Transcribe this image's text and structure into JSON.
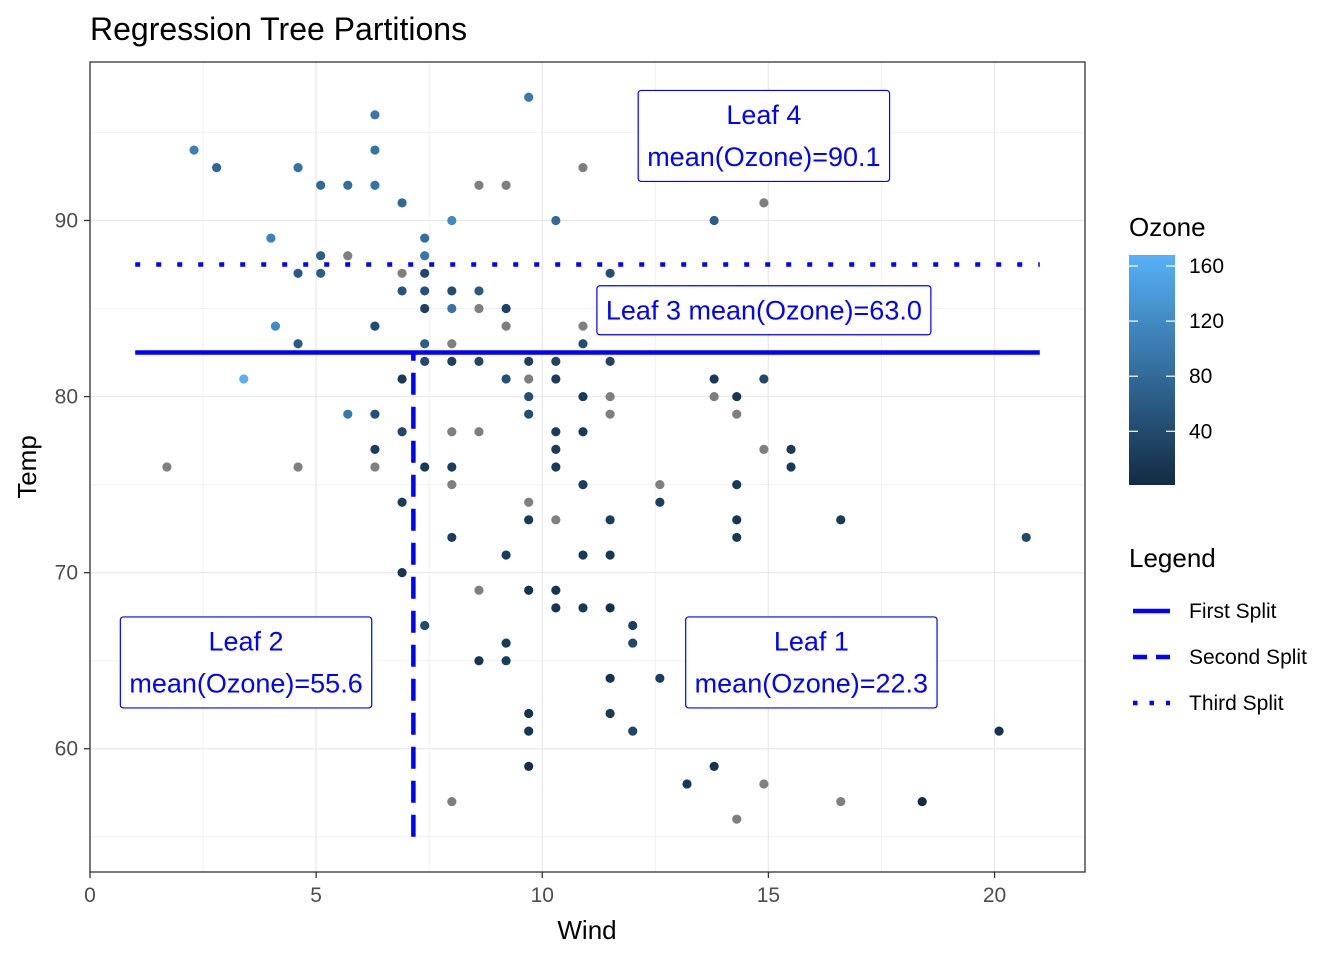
{
  "chart_data": {
    "type": "scatter",
    "title": "Regression Tree Partitions",
    "xlabel": "Wind",
    "ylabel": "Temp",
    "xlim": [
      0,
      22
    ],
    "ylim": [
      53,
      99
    ],
    "xticks": [
      0,
      5,
      10,
      15,
      20
    ],
    "yticks": [
      60,
      70,
      80,
      90
    ],
    "grid": true,
    "color_legend": {
      "title": "Ozone",
      "range": [
        1,
        168
      ],
      "ticks": [
        40,
        80,
        120,
        160
      ],
      "low_color": "#132b43",
      "high_color": "#56b1f7",
      "na_color": "#7f7f7f"
    },
    "line_legend": {
      "title": "Legend",
      "entries": [
        "First Split",
        "Second Split",
        "Third Split"
      ]
    },
    "splits": [
      {
        "name": "First Split",
        "style": "solid",
        "orientation": "horizontal",
        "y": 82.5,
        "x_range": [
          1,
          21
        ],
        "color": "#0000ff"
      },
      {
        "name": "Second Split",
        "style": "dashed",
        "orientation": "vertical",
        "x": 7.15,
        "y_range": [
          55,
          82.5
        ],
        "color": "#0000ff"
      },
      {
        "name": "Third Split",
        "style": "dotted",
        "orientation": "horizontal",
        "y": 87.5,
        "x_range": [
          1,
          21
        ],
        "color": "#0000ff"
      }
    ],
    "annotations": [
      {
        "lines": [
          "Leaf 4",
          "mean(Ozone)=90.1"
        ],
        "x": 14.9,
        "y": 94.8
      },
      {
        "lines": [
          "Leaf 3 mean(Ozone)=63.0"
        ],
        "x": 14.9,
        "y": 84.9
      },
      {
        "lines": [
          "Leaf 2",
          "mean(Ozone)=55.6"
        ],
        "x": 3.45,
        "y": 64.9
      },
      {
        "lines": [
          "Leaf 1",
          "mean(Ozone)=22.3"
        ],
        "x": 15.95,
        "y": 64.9
      }
    ],
    "points": [
      {
        "x": 9.7,
        "y": 97,
        "ozone": 97
      },
      {
        "x": 6.3,
        "y": 96,
        "ozone": 96
      },
      {
        "x": 2.3,
        "y": 94,
        "ozone": 108
      },
      {
        "x": 6.3,
        "y": 94,
        "ozone": 89
      },
      {
        "x": 2.8,
        "y": 93,
        "ozone": 73
      },
      {
        "x": 4.6,
        "y": 93,
        "ozone": 91
      },
      {
        "x": 10.9,
        "y": 93,
        "ozone": null
      },
      {
        "x": 5.1,
        "y": 92,
        "ozone": 78
      },
      {
        "x": 5.7,
        "y": 92,
        "ozone": 85
      },
      {
        "x": 6.3,
        "y": 92,
        "ozone": 90
      },
      {
        "x": 8.6,
        "y": 92,
        "ozone": null
      },
      {
        "x": 9.2,
        "y": 92,
        "ozone": null
      },
      {
        "x": 6.9,
        "y": 91,
        "ozone": 76
      },
      {
        "x": 14.9,
        "y": 91,
        "ozone": null
      },
      {
        "x": 8.0,
        "y": 90,
        "ozone": 118
      },
      {
        "x": 10.3,
        "y": 90,
        "ozone": 80
      },
      {
        "x": 13.8,
        "y": 90,
        "ozone": 66
      },
      {
        "x": 4.0,
        "y": 89,
        "ozone": 110
      },
      {
        "x": 7.4,
        "y": 89,
        "ozone": 85
      },
      {
        "x": 5.1,
        "y": 88,
        "ozone": 64
      },
      {
        "x": 5.7,
        "y": 88,
        "ozone": null
      },
      {
        "x": 7.4,
        "y": 88,
        "ozone": 96
      },
      {
        "x": 4.6,
        "y": 87,
        "ozone": 59
      },
      {
        "x": 5.1,
        "y": 87,
        "ozone": 63
      },
      {
        "x": 6.9,
        "y": 87,
        "ozone": null
      },
      {
        "x": 7.4,
        "y": 87,
        "ozone": 39
      },
      {
        "x": 11.5,
        "y": 87,
        "ozone": 44
      },
      {
        "x": 6.9,
        "y": 86,
        "ozone": 52
      },
      {
        "x": 7.4,
        "y": 86,
        "ozone": 50
      },
      {
        "x": 8.0,
        "y": 86,
        "ozone": 42
      },
      {
        "x": 8.6,
        "y": 86,
        "ozone": 59
      },
      {
        "x": 11.5,
        "y": 86,
        "ozone": 39
      },
      {
        "x": 12.0,
        "y": 86,
        "ozone": 47
      },
      {
        "x": 7.4,
        "y": 85,
        "ozone": 28
      },
      {
        "x": 8.0,
        "y": 85,
        "ozone": 91
      },
      {
        "x": 8.6,
        "y": 85,
        "ozone": null
      },
      {
        "x": 9.2,
        "y": 85,
        "ozone": 30
      },
      {
        "x": 4.1,
        "y": 84,
        "ozone": 122
      },
      {
        "x": 6.3,
        "y": 84,
        "ozone": 44
      },
      {
        "x": 9.2,
        "y": 84,
        "ozone": null
      },
      {
        "x": 10.9,
        "y": 84,
        "ozone": null
      },
      {
        "x": 11.5,
        "y": 84,
        "ozone": 35
      },
      {
        "x": 4.6,
        "y": 83,
        "ozone": 61
      },
      {
        "x": 7.4,
        "y": 83,
        "ozone": 64
      },
      {
        "x": 8.0,
        "y": 83,
        "ozone": null
      },
      {
        "x": 10.9,
        "y": 83,
        "ozone": 45
      },
      {
        "x": 7.4,
        "y": 82,
        "ozone": 40
      },
      {
        "x": 8.0,
        "y": 82,
        "ozone": 27
      },
      {
        "x": 8.6,
        "y": 82,
        "ozone": 35
      },
      {
        "x": 9.7,
        "y": 82,
        "ozone": 29
      },
      {
        "x": 10.3,
        "y": 82,
        "ozone": 32
      },
      {
        "x": 11.5,
        "y": 82,
        "ozone": 31
      },
      {
        "x": 6.9,
        "y": 81,
        "ozone": 20
      },
      {
        "x": 9.2,
        "y": 81,
        "ozone": 46
      },
      {
        "x": 9.7,
        "y": 81,
        "ozone": null
      },
      {
        "x": 10.3,
        "y": 81,
        "ozone": 21
      },
      {
        "x": 13.8,
        "y": 81,
        "ozone": 18
      },
      {
        "x": 14.9,
        "y": 81,
        "ozone": 36
      },
      {
        "x": 3.4,
        "y": 81,
        "ozone": 168
      },
      {
        "x": 9.7,
        "y": 80,
        "ozone": 44
      },
      {
        "x": 10.9,
        "y": 80,
        "ozone": 21
      },
      {
        "x": 11.5,
        "y": 80,
        "ozone": null
      },
      {
        "x": 13.8,
        "y": 80,
        "ozone": null
      },
      {
        "x": 14.3,
        "y": 80,
        "ozone": 16
      },
      {
        "x": 5.7,
        "y": 79,
        "ozone": 97
      },
      {
        "x": 6.3,
        "y": 79,
        "ozone": 48
      },
      {
        "x": 9.7,
        "y": 79,
        "ozone": 44
      },
      {
        "x": 11.5,
        "y": 79,
        "ozone": null
      },
      {
        "x": 14.3,
        "y": 79,
        "ozone": null
      },
      {
        "x": 6.9,
        "y": 78,
        "ozone": 37
      },
      {
        "x": 8.0,
        "y": 78,
        "ozone": null
      },
      {
        "x": 8.6,
        "y": 78,
        "ozone": null
      },
      {
        "x": 10.3,
        "y": 78,
        "ozone": 21
      },
      {
        "x": 10.9,
        "y": 78,
        "ozone": 20
      },
      {
        "x": 6.3,
        "y": 77,
        "ozone": 23
      },
      {
        "x": 10.3,
        "y": 77,
        "ozone": 21
      },
      {
        "x": 14.9,
        "y": 77,
        "ozone": null
      },
      {
        "x": 15.5,
        "y": 77,
        "ozone": 20
      },
      {
        "x": 1.7,
        "y": 76,
        "ozone": null
      },
      {
        "x": 4.6,
        "y": 76,
        "ozone": null
      },
      {
        "x": 6.3,
        "y": 76,
        "ozone": null
      },
      {
        "x": 7.4,
        "y": 76,
        "ozone": 18
      },
      {
        "x": 8.0,
        "y": 76,
        "ozone": 23
      },
      {
        "x": 10.3,
        "y": 76,
        "ozone": 20
      },
      {
        "x": 15.5,
        "y": 76,
        "ozone": 19
      },
      {
        "x": 8.0,
        "y": 75,
        "ozone": null
      },
      {
        "x": 10.9,
        "y": 75,
        "ozone": 24
      },
      {
        "x": 12.6,
        "y": 75,
        "ozone": null
      },
      {
        "x": 14.3,
        "y": 75,
        "ozone": 18
      },
      {
        "x": 6.9,
        "y": 74,
        "ozone": 21
      },
      {
        "x": 9.7,
        "y": 74,
        "ozone": null
      },
      {
        "x": 12.6,
        "y": 74,
        "ozone": 24
      },
      {
        "x": 9.7,
        "y": 73,
        "ozone": 18
      },
      {
        "x": 10.3,
        "y": 73,
        "ozone": null
      },
      {
        "x": 11.5,
        "y": 73,
        "ozone": 22
      },
      {
        "x": 14.3,
        "y": 73,
        "ozone": 13
      },
      {
        "x": 16.6,
        "y": 73,
        "ozone": 20
      },
      {
        "x": 8.0,
        "y": 72,
        "ozone": 23
      },
      {
        "x": 14.3,
        "y": 72,
        "ozone": 18
      },
      {
        "x": 20.7,
        "y": 72,
        "ozone": 37
      },
      {
        "x": 9.2,
        "y": 71,
        "ozone": 21
      },
      {
        "x": 10.9,
        "y": 71,
        "ozone": 18
      },
      {
        "x": 11.5,
        "y": 71,
        "ozone": 16
      },
      {
        "x": 6.9,
        "y": 70,
        "ozone": 14
      },
      {
        "x": 8.6,
        "y": 69,
        "ozone": null
      },
      {
        "x": 9.7,
        "y": 69,
        "ozone": 9
      },
      {
        "x": 10.3,
        "y": 69,
        "ozone": 13
      },
      {
        "x": 10.3,
        "y": 68,
        "ozone": 12
      },
      {
        "x": 10.9,
        "y": 68,
        "ozone": 18
      },
      {
        "x": 11.5,
        "y": 68,
        "ozone": 7
      },
      {
        "x": 7.4,
        "y": 67,
        "ozone": 41
      },
      {
        "x": 12.0,
        "y": 67,
        "ozone": 28
      },
      {
        "x": 9.2,
        "y": 66,
        "ozone": 19
      },
      {
        "x": 12.0,
        "y": 66,
        "ozone": 36
      },
      {
        "x": 8.6,
        "y": 65,
        "ozone": 13
      },
      {
        "x": 9.2,
        "y": 65,
        "ozone": 22
      },
      {
        "x": 11.5,
        "y": 64,
        "ozone": 11
      },
      {
        "x": 12.6,
        "y": 64,
        "ozone": 23
      },
      {
        "x": 9.7,
        "y": 62,
        "ozone": 9
      },
      {
        "x": 11.5,
        "y": 62,
        "ozone": 18
      },
      {
        "x": 9.7,
        "y": 61,
        "ozone": 14
      },
      {
        "x": 12.0,
        "y": 61,
        "ozone": 34
      },
      {
        "x": 20.1,
        "y": 61,
        "ozone": 8
      },
      {
        "x": 9.7,
        "y": 59,
        "ozone": 6
      },
      {
        "x": 13.8,
        "y": 59,
        "ozone": 11
      },
      {
        "x": 13.2,
        "y": 58,
        "ozone": 18
      },
      {
        "x": 14.9,
        "y": 58,
        "ozone": null
      },
      {
        "x": 8.0,
        "y": 57,
        "ozone": null
      },
      {
        "x": 16.6,
        "y": 57,
        "ozone": null
      },
      {
        "x": 18.4,
        "y": 57,
        "ozone": 1
      },
      {
        "x": 14.3,
        "y": 56,
        "ozone": null
      }
    ]
  }
}
